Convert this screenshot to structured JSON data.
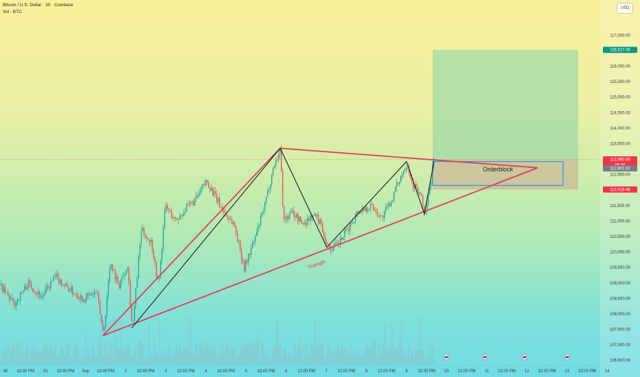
{
  "header": {
    "symbol_line": "Bitcoin / U.S. Dollar · 30 · Coinbase",
    "volume_line": "Vol · BTC"
  },
  "currency": "USD",
  "colors": {
    "up": "#26a69a",
    "down": "#ef5350",
    "trendline": "#e03c5a",
    "zigzag": "#1a1a1a",
    "target_zone": "#a3d9a5",
    "orderblock_fill": "#cbbf9a",
    "orderblock_border": "#2196f3",
    "target_tag": "#089981",
    "price_tag": "#f23645",
    "current_tag": "#787b86",
    "level_tag": "#f23645"
  },
  "chart_data": {
    "type": "candlestick",
    "title": "Bitcoin / U.S. Dollar · 30 · Coinbase",
    "y_unit": "USD",
    "ylim": [
      106450,
      117650
    ],
    "y_ticks": [
      "117,000.00",
      "116,500.00",
      "116,000.00",
      "115,500.00",
      "115,000.00",
      "114,500.00",
      "114,000.00",
      "113,500.00",
      "113,000.00",
      "112,500.00",
      "112,000.00",
      "111,500.00",
      "111,000.00",
      "110,500.00",
      "110,000.00",
      "109,500.00",
      "109,000.00",
      "108,500.00",
      "108,000.00",
      "107,500.00",
      "107,000.00",
      "106,500.00"
    ],
    "x_ticks": [
      "30",
      "12:00 PM",
      "31",
      "12:00 PM",
      "Sep",
      "12:00 PM",
      "2",
      "12:00 PM",
      "3",
      "12:00 PM",
      "4",
      "12:00 PM",
      "5",
      "12:00 PM",
      "6",
      "12:00 PM",
      "7",
      "12:00 PM",
      "8",
      "12:00 PM",
      "9",
      "12:00 PM",
      "10",
      "12:00 PM",
      "11",
      "12:00 PM",
      "12",
      "12:00 PM",
      "13",
      "12:00 PM",
      "14"
    ],
    "price_path": [
      {
        "i": 0,
        "p": 108900
      },
      {
        "i": 20,
        "p": 108300
      },
      {
        "i": 40,
        "p": 109000
      },
      {
        "i": 60,
        "p": 108550
      },
      {
        "i": 80,
        "p": 109200
      },
      {
        "i": 100,
        "p": 108800
      },
      {
        "i": 120,
        "p": 108500
      },
      {
        "i": 140,
        "p": 108700
      },
      {
        "i": 150,
        "p": 107350
      },
      {
        "i": 160,
        "p": 109700
      },
      {
        "i": 172,
        "p": 108900
      },
      {
        "i": 185,
        "p": 109600
      },
      {
        "i": 192,
        "p": 107500
      },
      {
        "i": 205,
        "p": 110700
      },
      {
        "i": 220,
        "p": 110300
      },
      {
        "i": 230,
        "p": 108900
      },
      {
        "i": 240,
        "p": 111500
      },
      {
        "i": 255,
        "p": 111000
      },
      {
        "i": 270,
        "p": 111400
      },
      {
        "i": 285,
        "p": 111700
      },
      {
        "i": 300,
        "p": 112300
      },
      {
        "i": 315,
        "p": 111700
      },
      {
        "i": 325,
        "p": 111300
      },
      {
        "i": 340,
        "p": 110900
      },
      {
        "i": 355,
        "p": 109500
      },
      {
        "i": 370,
        "p": 110400
      },
      {
        "i": 385,
        "p": 111500
      },
      {
        "i": 398,
        "p": 112800
      },
      {
        "i": 408,
        "p": 113300
      },
      {
        "i": 412,
        "p": 111000
      },
      {
        "i": 425,
        "p": 111300
      },
      {
        "i": 440,
        "p": 110900
      },
      {
        "i": 455,
        "p": 111200
      },
      {
        "i": 465,
        "p": 111000
      },
      {
        "i": 478,
        "p": 110100
      },
      {
        "i": 490,
        "p": 110200
      },
      {
        "i": 505,
        "p": 110700
      },
      {
        "i": 520,
        "p": 111300
      },
      {
        "i": 540,
        "p": 111500
      },
      {
        "i": 555,
        "p": 111100
      },
      {
        "i": 570,
        "p": 111700
      },
      {
        "i": 580,
        "p": 112300
      },
      {
        "i": 592,
        "p": 112900
      },
      {
        "i": 600,
        "p": 112200
      },
      {
        "i": 612,
        "p": 111800
      },
      {
        "i": 618,
        "p": 111200
      },
      {
        "i": 626,
        "p": 112100
      },
      {
        "i": 632,
        "p": 113300
      }
    ],
    "zones": [
      {
        "name": "target",
        "x_from": 630,
        "x_to": 842,
        "top": 116527,
        "bottom": 112990
      },
      {
        "name": "orderblock",
        "label": "Orderblock",
        "x_from": 630,
        "x_to": 842,
        "top": 112990,
        "bottom": 112018
      }
    ],
    "orderblock_box": {
      "x_from": 630,
      "x_to": 820,
      "top": 112920,
      "bottom": 112150
    },
    "trendlines": [
      {
        "name": "resistance",
        "from": {
          "x": 408,
          "p": 113350
        },
        "to": {
          "x": 783,
          "p": 112720
        }
      },
      {
        "name": "support",
        "from": {
          "x": 150,
          "p": 107300
        },
        "to": {
          "x": 783,
          "p": 112720
        }
      },
      {
        "name": "left-leg",
        "from": {
          "x": 150,
          "p": 107300
        },
        "to": {
          "x": 408,
          "p": 113350
        }
      }
    ],
    "zigzag": [
      {
        "x": 192,
        "p": 107550
      },
      {
        "x": 408,
        "p": 113350
      },
      {
        "x": 476,
        "p": 110150
      },
      {
        "x": 592,
        "p": 112920
      },
      {
        "x": 618,
        "p": 111230
      },
      {
        "x": 632,
        "p": 112920
      }
    ],
    "annotations": [
      {
        "text": "Triangle",
        "x": 462,
        "p": 109550,
        "angle": -21
      },
      {
        "text": "Orderblock",
        "x": 725,
        "p": 112600
      }
    ],
    "price_tags": [
      {
        "value": "116,527.06",
        "p": 116527,
        "kind": "target"
      },
      {
        "value": "112,990.66",
        "p": 112990,
        "kind": "last",
        "sub": "06:56"
      },
      {
        "value": "112,801.92",
        "p": 112700,
        "kind": "current"
      },
      {
        "value": "112,018.46",
        "p": 112018,
        "kind": "level"
      }
    ],
    "current_price": 112990,
    "volume_visible": true,
    "grid": false
  }
}
